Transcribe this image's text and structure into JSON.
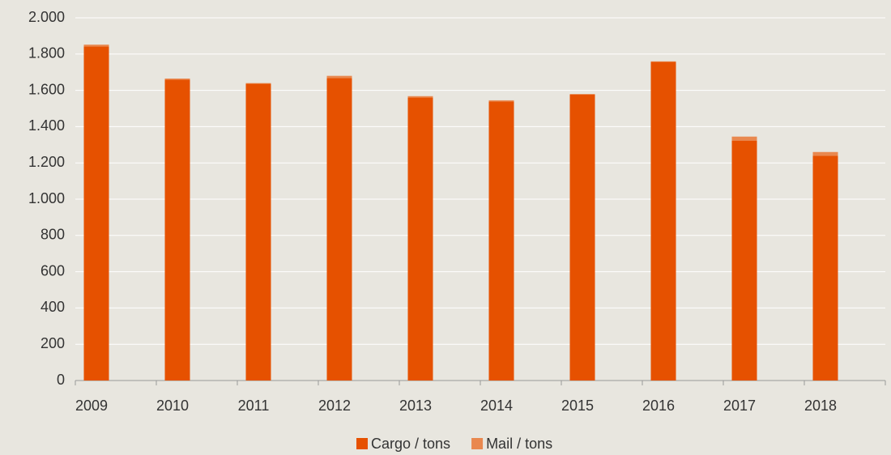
{
  "chart_data": {
    "type": "bar",
    "stacked": true,
    "categories": [
      "2009",
      "2010",
      "2011",
      "2012",
      "2013",
      "2014",
      "2015",
      "2016",
      "2017",
      "2018"
    ],
    "series": [
      {
        "name": "Cargo / tons",
        "color": "#e65100",
        "values": [
          1842,
          1659,
          1636,
          1668,
          1560,
          1539,
          1576,
          1757,
          1323,
          1240
        ]
      },
      {
        "name": "Mail / tons",
        "color": "#e9884f",
        "values": [
          10,
          6,
          4,
          12,
          8,
          6,
          4,
          3,
          22,
          20
        ]
      }
    ],
    "ylim": [
      0,
      2000
    ],
    "yticks": [
      0,
      200,
      400,
      600,
      800,
      {
        "value": 1000,
        "label": "1.000"
      },
      {
        "value": 1200,
        "label": "1.200"
      },
      {
        "value": 1400,
        "label": "1.400"
      },
      {
        "value": 1600,
        "label": "1.600"
      },
      {
        "value": 1800,
        "label": "1.800"
      },
      {
        "value": 2000,
        "label": "2.000"
      }
    ],
    "grid": true,
    "legend": "bottom"
  }
}
